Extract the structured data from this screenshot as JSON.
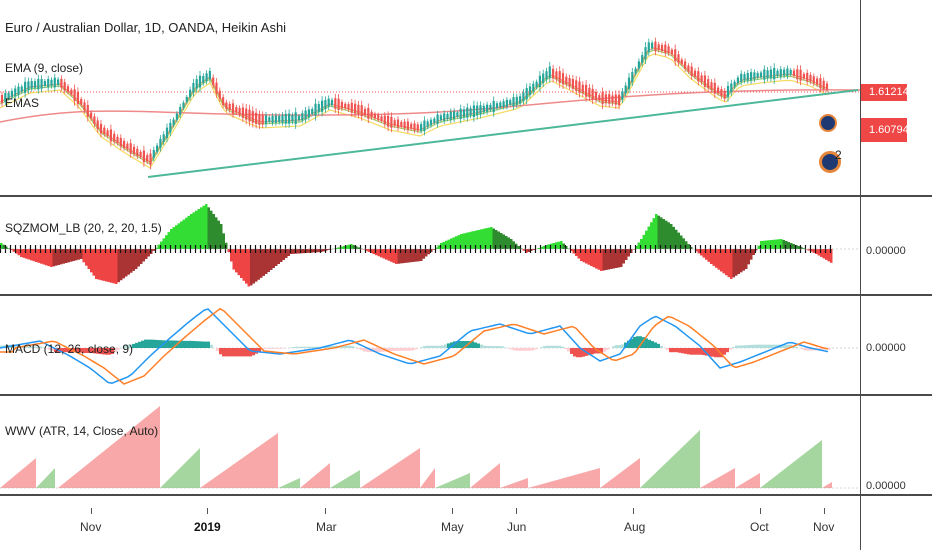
{
  "header": {
    "symbol_title": "Euro / Australian Dollar, 1D, OANDA, Heikin Ashi",
    "ema_label": "EMA (9, close)",
    "emas_label": "EMAS"
  },
  "price_axis": {
    "last_price": "1.61214",
    "second_price": "1.60794",
    "colors": {
      "tag": "#ef4646"
    }
  },
  "indicators": {
    "sqzmom": {
      "label": "SQZMOM_LB (20, 2, 20, 1.5)",
      "zero": "0.00000"
    },
    "macd": {
      "label": "MACD (12, 26, close, 9)",
      "zero": "0.00000"
    },
    "wwv": {
      "label": "WWV (ATR, 14, Close, Auto)",
      "zero": "0.00000"
    }
  },
  "events": {
    "badge_count": "2"
  },
  "time_axis": {
    "labels": [
      "Nov",
      "2019",
      "Mar",
      "May",
      "Jun",
      "Aug",
      "Oct",
      "Nov"
    ]
  },
  "colors": {
    "up": "#26a69a",
    "down": "#ef5350",
    "trendline": "#4db899",
    "sqz_up_strong": "#33dd33",
    "sqz_up_weak": "#2e8b2e",
    "sqz_down_strong": "#ef4444",
    "sqz_down_weak": "#a33",
    "macd_line": "#2196f3",
    "signal_line": "#ff7f27",
    "wwv_red": "#f8a8a8",
    "wwv_green": "#a6d6a0"
  }
}
